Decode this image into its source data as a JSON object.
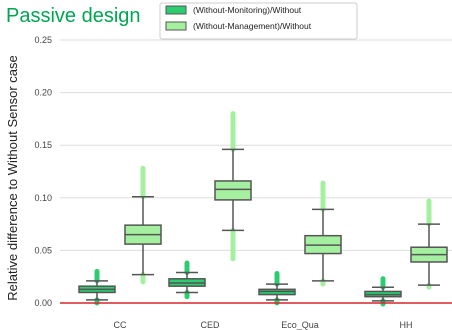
{
  "page_title": "Passive design",
  "chart_data": {
    "type": "boxplot",
    "title": "",
    "ylabel": "Relative difference to Without Sensor case",
    "xlabel": "",
    "categories": [
      "CC",
      "CED",
      "Eco_Qua",
      "HH"
    ],
    "ylim": [
      -0.01,
      0.25
    ],
    "yticks": [
      0.0,
      0.05,
      0.1,
      0.15,
      0.2,
      0.25
    ],
    "ytick_labels": [
      "0.00",
      "0.05",
      "0.10",
      "0.15",
      "0.20",
      "0.25"
    ],
    "grid": "horizontal",
    "legend_position": "top-center",
    "reference_line": {
      "y": 0.0,
      "color": "#d62728"
    },
    "series": [
      {
        "name": "(Without-Monitoring)/Without",
        "color": "#2ecc71",
        "boxes": [
          {
            "whisker_low": 0.003,
            "q1": 0.01,
            "median": 0.013,
            "q3": 0.016,
            "whisker_high": 0.021,
            "outlier_low": 0.0,
            "outlier_high": 0.03
          },
          {
            "whisker_low": 0.01,
            "q1": 0.016,
            "median": 0.019,
            "q3": 0.023,
            "whisker_high": 0.029,
            "outlier_low": 0.006,
            "outlier_high": 0.038
          },
          {
            "whisker_low": 0.003,
            "q1": 0.008,
            "median": 0.011,
            "q3": 0.013,
            "whisker_high": 0.018,
            "outlier_low": 0.0,
            "outlier_high": 0.028
          },
          {
            "whisker_low": 0.002,
            "q1": 0.006,
            "median": 0.008,
            "q3": 0.011,
            "whisker_high": 0.015,
            "outlier_low": -0.001,
            "outlier_high": 0.023
          }
        ]
      },
      {
        "name": "(Without-Management)/Without",
        "color": "#a4f0a0",
        "boxes": [
          {
            "whisker_low": 0.027,
            "q1": 0.056,
            "median": 0.065,
            "q3": 0.074,
            "whisker_high": 0.101,
            "outlier_low": 0.02,
            "outlier_high": 0.128
          },
          {
            "whisker_low": 0.069,
            "q1": 0.098,
            "median": 0.108,
            "q3": 0.116,
            "whisker_high": 0.146,
            "outlier_low": 0.042,
            "outlier_high": 0.18
          },
          {
            "whisker_low": 0.021,
            "q1": 0.047,
            "median": 0.055,
            "q3": 0.064,
            "whisker_high": 0.089,
            "outlier_low": 0.018,
            "outlier_high": 0.114
          },
          {
            "whisker_low": 0.017,
            "q1": 0.039,
            "median": 0.046,
            "q3": 0.053,
            "whisker_high": 0.075,
            "outlier_low": 0.015,
            "outlier_high": 0.097
          }
        ]
      }
    ]
  }
}
